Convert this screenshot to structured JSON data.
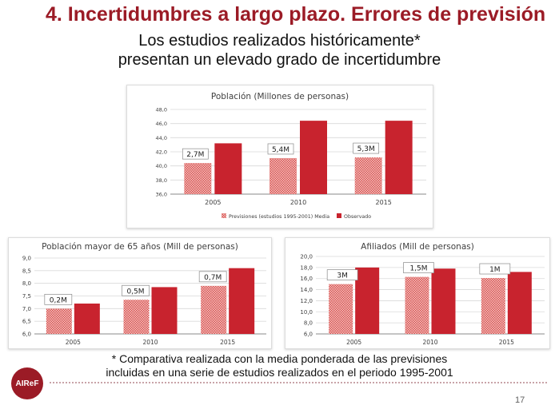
{
  "title": "4. Incertidumbres a largo plazo. Errores de previsión",
  "subtitle_line1": "Los estudios realizados históricamente*",
  "subtitle_line2": "presentan un elevado grado de incertidumbre",
  "footnote_line1": "* Comparativa realizada con la media ponderada de las previsiones",
  "footnote_line2": "incluidas en una serie de estudios realizados en el periodo 1995-2001",
  "logo_text": "AIReF",
  "page_number": "17",
  "colors": {
    "title": "#9b1b26",
    "observed": "#c8232e",
    "forecast_pattern": "#d9534f"
  },
  "chart_data": [
    {
      "type": "bar",
      "title": "Población (Millones de personas)",
      "categories": [
        "2005",
        "2010",
        "2015"
      ],
      "series": [
        {
          "name": "Previsiones (estudios 1995-2001) Media",
          "pattern": "hatched",
          "values": [
            40.4,
            41.1,
            41.2
          ]
        },
        {
          "name": "Observado",
          "pattern": "solid",
          "values": [
            43.2,
            46.4,
            46.4
          ]
        }
      ],
      "annotations": [
        "2,7M",
        "5,4M",
        "5,3M"
      ],
      "ylim": [
        36.0,
        48.0
      ],
      "yticks": [
        "36,0",
        "38,0",
        "40,0",
        "42,0",
        "44,0",
        "46,0",
        "48,0"
      ],
      "grid": true,
      "legend": "bottom"
    },
    {
      "type": "bar",
      "title": "Población mayor de 65 años (Mill de personas)",
      "categories": [
        "2005",
        "2010",
        "2015"
      ],
      "series": [
        {
          "name": "Previsiones (estudios 1995-2001) Media",
          "pattern": "hatched",
          "values": [
            7.0,
            7.35,
            7.9
          ]
        },
        {
          "name": "Observado",
          "pattern": "solid",
          "values": [
            7.2,
            7.85,
            8.6
          ]
        }
      ],
      "annotations": [
        "0,2M",
        "0,5M",
        "0,7M"
      ],
      "ylim": [
        6.0,
        9.0
      ],
      "yticks": [
        "6,0",
        "6,5",
        "7,0",
        "7,5",
        "8,0",
        "8,5",
        "9,0"
      ],
      "grid": true
    },
    {
      "type": "bar",
      "title": "Afiliados (Mill de personas)",
      "categories": [
        "2005",
        "2010",
        "2015"
      ],
      "series": [
        {
          "name": "Previsiones (estudios 1995-2001) Media",
          "pattern": "hatched",
          "values": [
            15.0,
            16.3,
            16.1
          ]
        },
        {
          "name": "Observado",
          "pattern": "solid",
          "values": [
            18.0,
            17.8,
            17.2
          ]
        }
      ],
      "annotations": [
        "3M",
        "1,5M",
        "1M"
      ],
      "ylim": [
        6.0,
        20.0
      ],
      "yticks": [
        "6,0",
        "8,0",
        "10,0",
        "12,0",
        "14,0",
        "16,0",
        "18,0",
        "20,0"
      ],
      "grid": true
    }
  ]
}
